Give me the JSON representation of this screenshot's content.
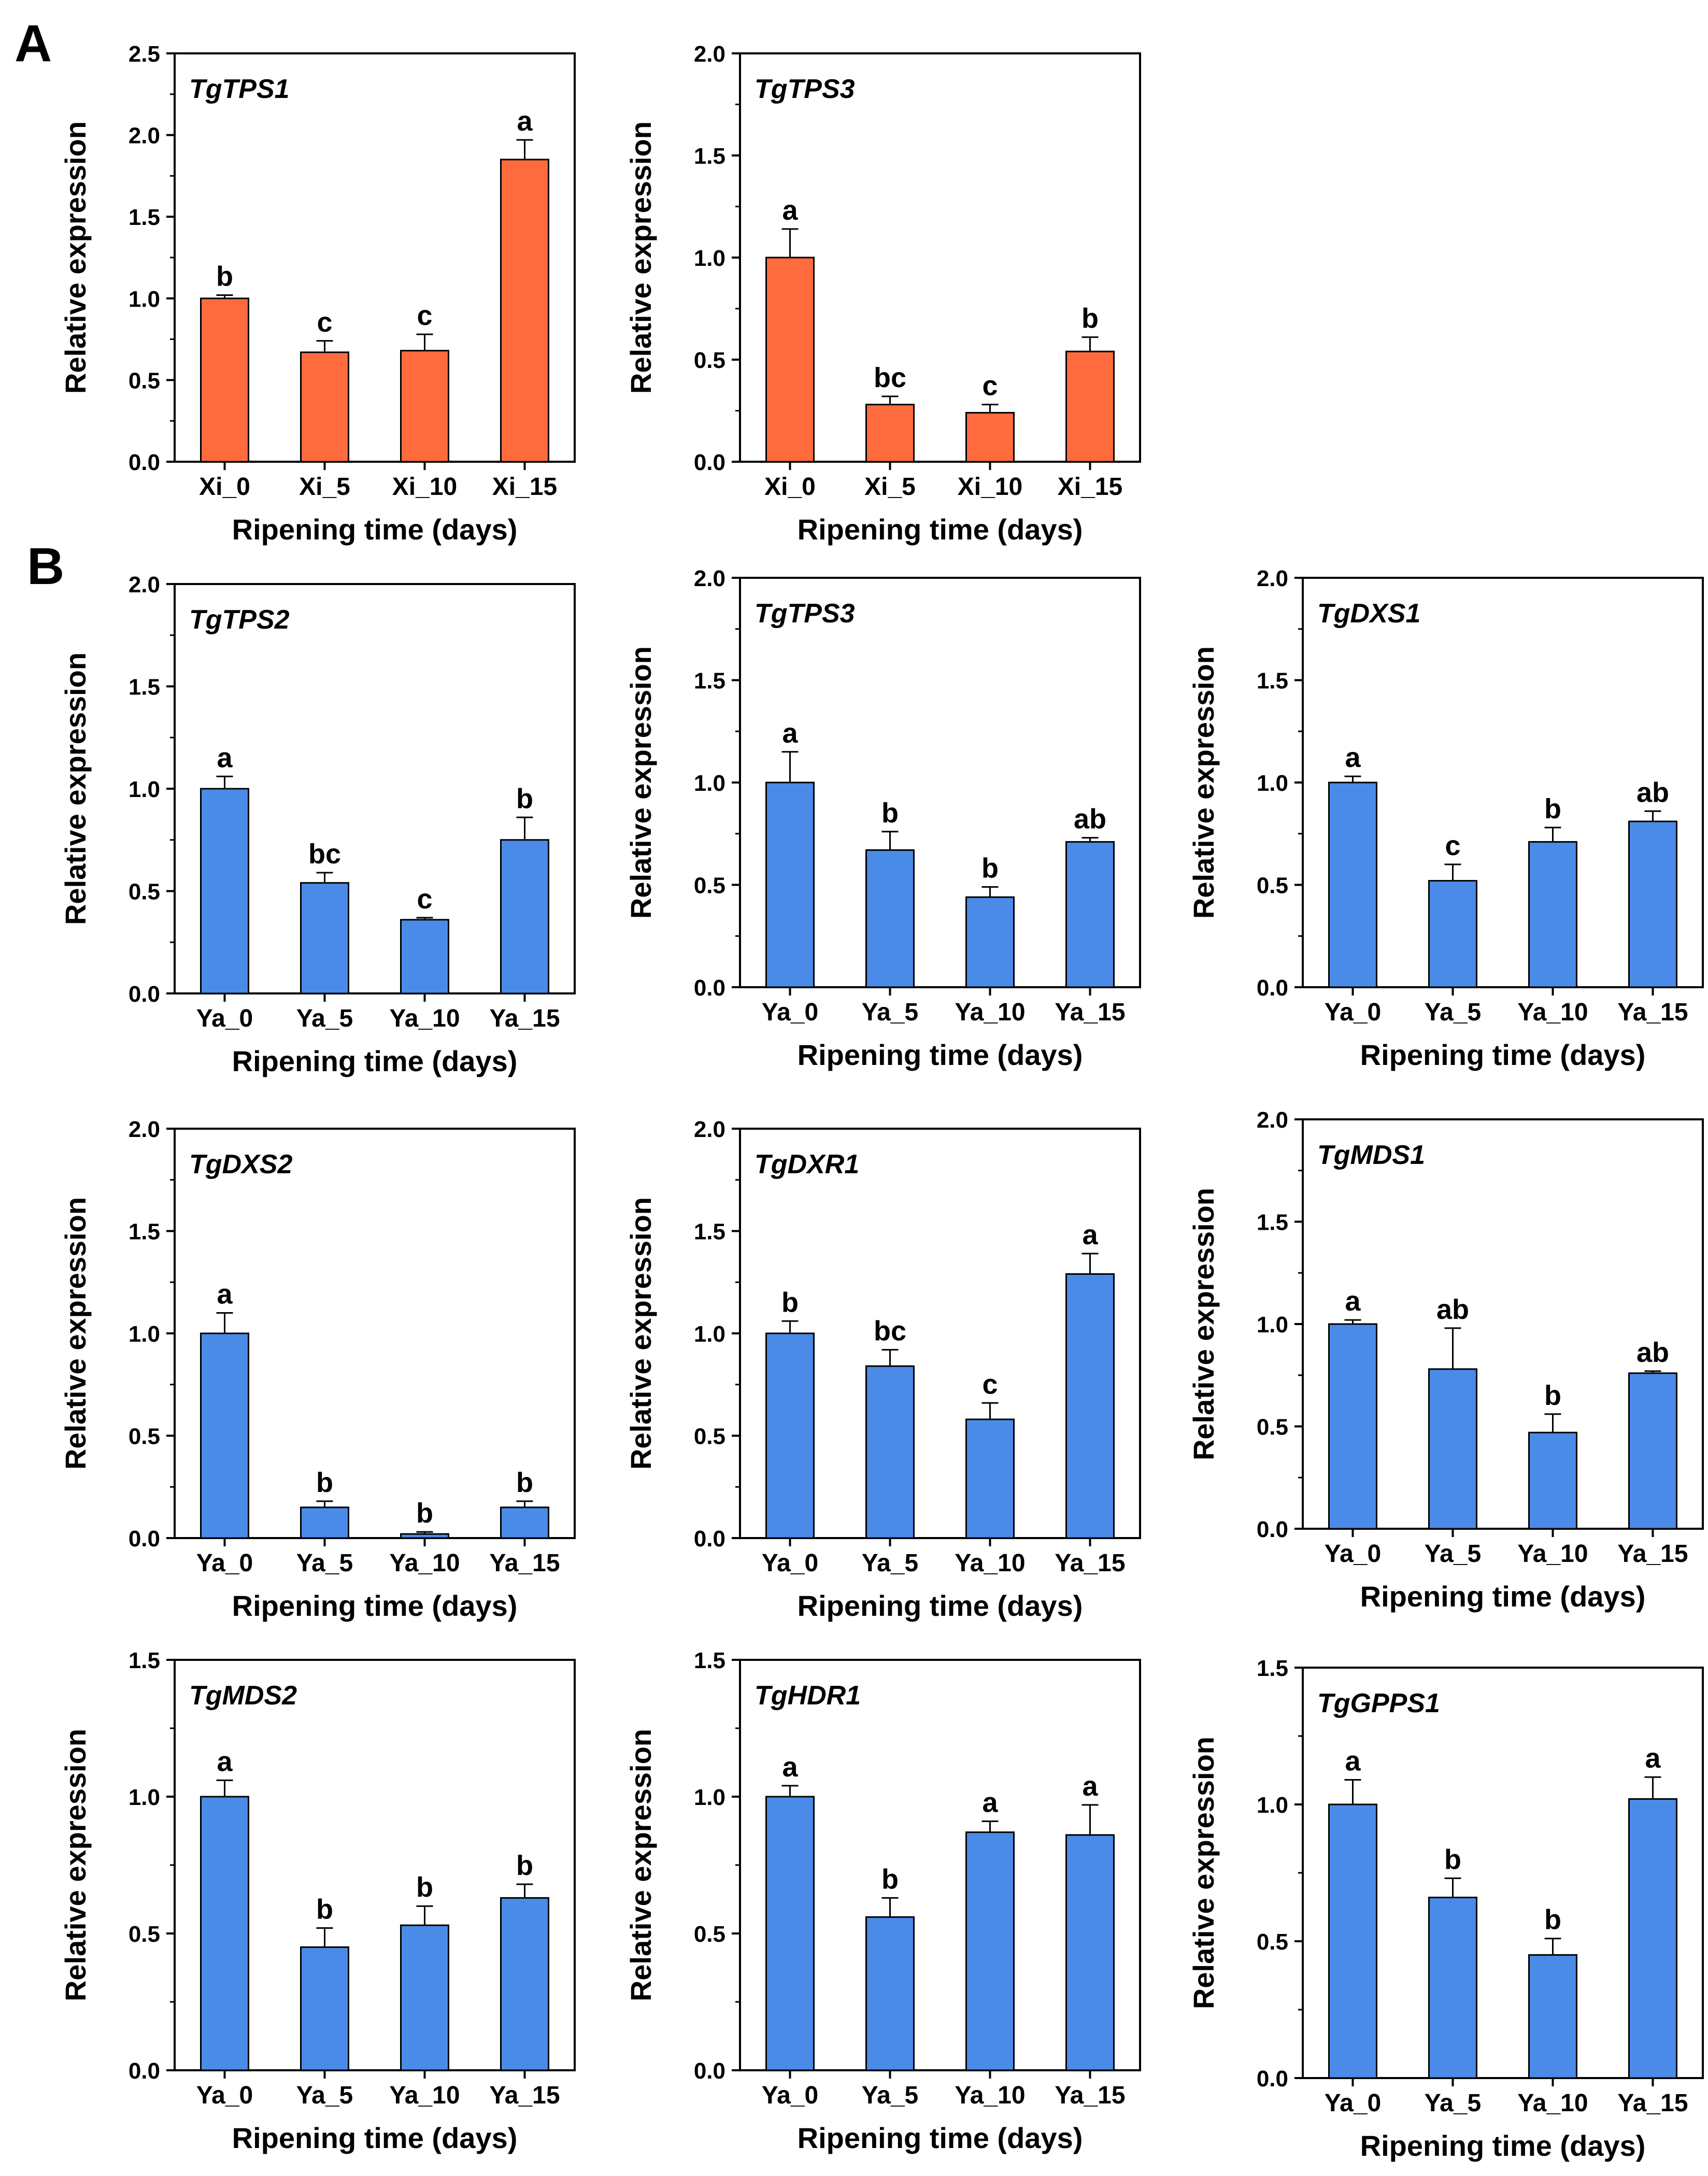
{
  "panel_labels": [
    "A",
    "B"
  ],
  "colors": {
    "orange": "#FF6B3D",
    "blue": "#4A8BE8",
    "axis": "#000000"
  },
  "chart_data": [
    {
      "id": "a1",
      "panel": "A",
      "type": "bar",
      "title": "TgTPS1",
      "categories": [
        "Xi_0",
        "Xi_5",
        "Xi_10",
        "Xi_15"
      ],
      "values": [
        1.0,
        0.67,
        0.68,
        1.85
      ],
      "errors": [
        0.02,
        0.07,
        0.1,
        0.12
      ],
      "letters": [
        "b",
        "c",
        "c",
        "a"
      ],
      "ylim": [
        0,
        2.5
      ],
      "yticks": [
        "0.0",
        "0.5",
        "1.0",
        "1.5",
        "2.0",
        "2.5"
      ],
      "xlabel": "Ripening time (days)",
      "ylabel": "Relative expression",
      "color": "orange"
    },
    {
      "id": "a2",
      "panel": "A",
      "type": "bar",
      "title": "TgTPS3",
      "categories": [
        "Xi_0",
        "Xi_5",
        "Xi_10",
        "Xi_15"
      ],
      "values": [
        1.0,
        0.28,
        0.24,
        0.54
      ],
      "errors": [
        0.14,
        0.04,
        0.04,
        0.07
      ],
      "letters": [
        "a",
        "bc",
        "c",
        "b"
      ],
      "ylim": [
        0,
        2.0
      ],
      "yticks": [
        "0.0",
        "0.5",
        "1.0",
        "1.5",
        "2.0"
      ],
      "xlabel": "Ripening time (days)",
      "ylabel": "Relative expression",
      "color": "orange"
    },
    {
      "id": "b1",
      "panel": "B",
      "type": "bar",
      "title": "TgTPS2",
      "categories": [
        "Ya_0",
        "Ya_5",
        "Ya_10",
        "Ya_15"
      ],
      "values": [
        1.0,
        0.54,
        0.36,
        0.75
      ],
      "errors": [
        0.06,
        0.05,
        0.01,
        0.11
      ],
      "letters": [
        "a",
        "bc",
        "c",
        "b"
      ],
      "ylim": [
        0,
        2.0
      ],
      "yticks": [
        "0.0",
        "0.5",
        "1.0",
        "1.5",
        "2.0"
      ],
      "xlabel": "Ripening time (days)",
      "ylabel": "Relative expression",
      "color": "blue"
    },
    {
      "id": "b2",
      "panel": "B",
      "type": "bar",
      "title": "TgTPS3",
      "categories": [
        "Ya_0",
        "Ya_5",
        "Ya_10",
        "Ya_15"
      ],
      "values": [
        1.0,
        0.67,
        0.44,
        0.71
      ],
      "errors": [
        0.15,
        0.09,
        0.05,
        0.02
      ],
      "letters": [
        "a",
        "b",
        "b",
        "ab"
      ],
      "ylim": [
        0,
        2.0
      ],
      "yticks": [
        "0.0",
        "0.5",
        "1.0",
        "1.5",
        "2.0"
      ],
      "xlabel": "Ripening time (days)",
      "ylabel": "Relative expression",
      "color": "blue"
    },
    {
      "id": "b3",
      "panel": "B",
      "type": "bar",
      "title": "TgDXS1",
      "categories": [
        "Ya_0",
        "Ya_5",
        "Ya_10",
        "Ya_15"
      ],
      "values": [
        1.0,
        0.52,
        0.71,
        0.81
      ],
      "errors": [
        0.03,
        0.08,
        0.07,
        0.05
      ],
      "letters": [
        "a",
        "c",
        "b",
        "ab"
      ],
      "ylim": [
        0,
        2.0
      ],
      "yticks": [
        "0.0",
        "0.5",
        "1.0",
        "1.5",
        "2.0"
      ],
      "xlabel": "Ripening time (days)",
      "ylabel": "Relative expression",
      "color": "blue"
    },
    {
      "id": "b4",
      "panel": "B",
      "type": "bar",
      "title": "TgDXS2",
      "categories": [
        "Ya_0",
        "Ya_5",
        "Ya_10",
        "Ya_15"
      ],
      "values": [
        1.0,
        0.15,
        0.02,
        0.15
      ],
      "errors": [
        0.1,
        0.03,
        0.01,
        0.03
      ],
      "letters": [
        "a",
        "b",
        "b",
        "b"
      ],
      "ylim": [
        0,
        2.0
      ],
      "yticks": [
        "0.0",
        "0.5",
        "1.0",
        "1.5",
        "2.0"
      ],
      "xlabel": "Ripening time (days)",
      "ylabel": "Relative expression",
      "color": "blue"
    },
    {
      "id": "b5",
      "panel": "B",
      "type": "bar",
      "title": "TgDXR1",
      "categories": [
        "Ya_0",
        "Ya_5",
        "Ya_10",
        "Ya_15"
      ],
      "values": [
        1.0,
        0.84,
        0.58,
        1.29
      ],
      "errors": [
        0.06,
        0.08,
        0.08,
        0.1
      ],
      "letters": [
        "b",
        "bc",
        "c",
        "a"
      ],
      "ylim": [
        0,
        2.0
      ],
      "yticks": [
        "0.0",
        "0.5",
        "1.0",
        "1.5",
        "2.0"
      ],
      "xlabel": "Ripening time (days)",
      "ylabel": "Relative expression",
      "color": "blue"
    },
    {
      "id": "b6",
      "panel": "B",
      "type": "bar",
      "title": "TgMDS1",
      "categories": [
        "Ya_0",
        "Ya_5",
        "Ya_10",
        "Ya_15"
      ],
      "values": [
        1.0,
        0.78,
        0.47,
        0.76
      ],
      "errors": [
        0.02,
        0.2,
        0.09,
        0.01
      ],
      "letters": [
        "a",
        "ab",
        "b",
        "ab"
      ],
      "ylim": [
        0,
        2.0
      ],
      "yticks": [
        "0.0",
        "0.5",
        "1.0",
        "1.5",
        "2.0"
      ],
      "xlabel": "Ripening time (days)",
      "ylabel": "Relative expression",
      "color": "blue"
    },
    {
      "id": "b7",
      "panel": "B",
      "type": "bar",
      "title": "TgMDS2",
      "categories": [
        "Ya_0",
        "Ya_5",
        "Ya_10",
        "Ya_15"
      ],
      "values": [
        1.0,
        0.45,
        0.53,
        0.63
      ],
      "errors": [
        0.06,
        0.07,
        0.07,
        0.05
      ],
      "letters": [
        "a",
        "b",
        "b",
        "b"
      ],
      "ylim": [
        0,
        1.5
      ],
      "yticks": [
        "0.0",
        "0.5",
        "1.0",
        "1.5"
      ],
      "xlabel": "Ripening time (days)",
      "ylabel": "Relative expression",
      "color": "blue"
    },
    {
      "id": "b8",
      "panel": "B",
      "type": "bar",
      "title": "TgHDR1",
      "categories": [
        "Ya_0",
        "Ya_5",
        "Ya_10",
        "Ya_15"
      ],
      "values": [
        1.0,
        0.56,
        0.87,
        0.86
      ],
      "errors": [
        0.04,
        0.07,
        0.04,
        0.11
      ],
      "letters": [
        "a",
        "b",
        "a",
        "a"
      ],
      "ylim": [
        0,
        1.5
      ],
      "yticks": [
        "0.0",
        "0.5",
        "1.0",
        "1.5"
      ],
      "xlabel": "Ripening time (days)",
      "ylabel": "Relative expression",
      "color": "blue"
    },
    {
      "id": "b9",
      "panel": "B",
      "type": "bar",
      "title": "TgGPPS1",
      "categories": [
        "Ya_0",
        "Ya_5",
        "Ya_10",
        "Ya_15"
      ],
      "values": [
        1.0,
        0.66,
        0.45,
        1.02
      ],
      "errors": [
        0.09,
        0.07,
        0.06,
        0.08
      ],
      "letters": [
        "a",
        "b",
        "b",
        "a"
      ],
      "ylim": [
        0,
        1.5
      ],
      "yticks": [
        "0.0",
        "0.5",
        "1.0",
        "1.5"
      ],
      "xlabel": "Ripening time (days)",
      "ylabel": "Relative expression",
      "color": "blue"
    }
  ]
}
